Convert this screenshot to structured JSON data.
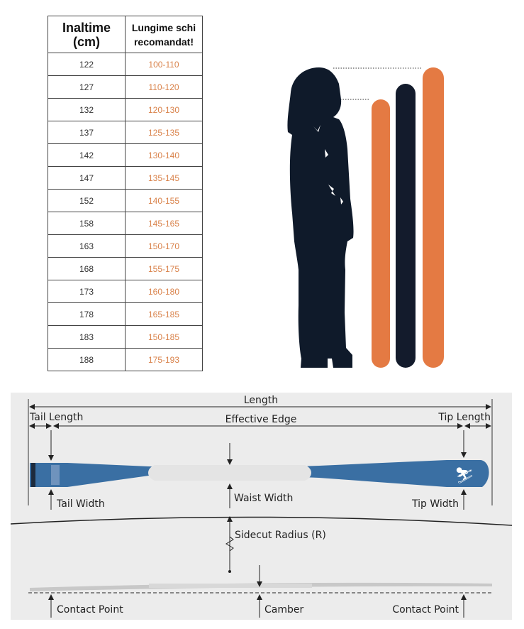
{
  "table": {
    "headers": [
      "Inaltime\n(cm)",
      "Lungime schi\nrecomandat!"
    ],
    "header_lines": [
      [
        "Inaltime",
        "(cm)"
      ],
      [
        "Lungime schi",
        "recomandat!"
      ]
    ],
    "rows": [
      [
        "122",
        "100-110"
      ],
      [
        "127",
        "110-120"
      ],
      [
        "132",
        "120-130"
      ],
      [
        "137",
        "125-135"
      ],
      [
        "142",
        "130-140"
      ],
      [
        "147",
        "135-145"
      ],
      [
        "152",
        "140-155"
      ],
      [
        "158",
        "145-165"
      ],
      [
        "163",
        "150-170"
      ],
      [
        "168",
        "155-175"
      ],
      [
        "173",
        "160-180"
      ],
      [
        "178",
        "165-185"
      ],
      [
        "183",
        "150-185"
      ],
      [
        "188",
        "175-193"
      ]
    ]
  },
  "colors": {
    "ski_orange": "#e47a43",
    "ski_dark": "#131b2c",
    "silhouette": "#0f1a2a",
    "ski_blue": "#3a6fa3",
    "length_text": "#d9824a"
  },
  "diagram": {
    "length": "Length",
    "tail_length": "Tail Length",
    "effective_edge": "Effective Edge",
    "tip_length": "Tip Length",
    "tail_width": "Tail Width",
    "waist_width": "Waist Width",
    "tip_width": "Tip Width",
    "sidecut_radius": "Sidecut Radius (R)",
    "contact_point_left": "Contact Point",
    "camber": "Camber",
    "contact_point_right": "Contact Point"
  }
}
